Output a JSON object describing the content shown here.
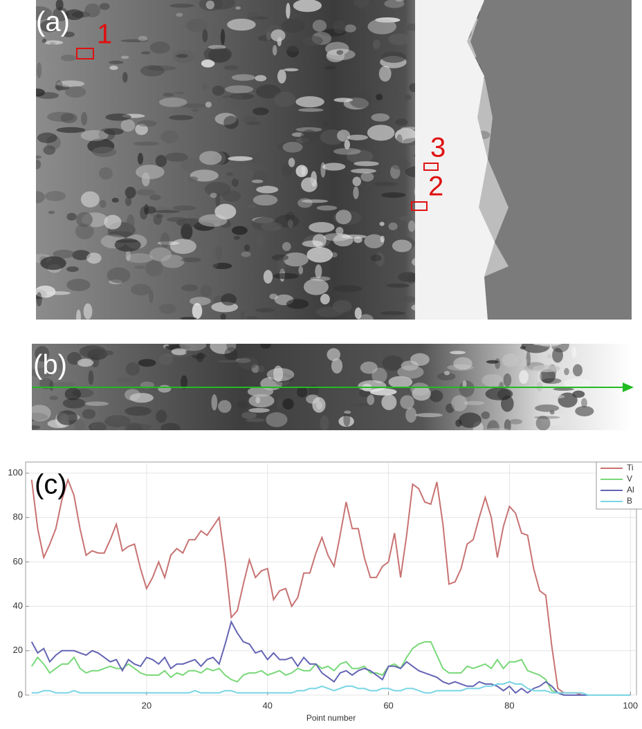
{
  "panels": {
    "a": {
      "label": "(a)",
      "markers": [
        "1",
        "2",
        "3"
      ]
    },
    "b": {
      "label": "(b)"
    }
  },
  "chart_data": {
    "type": "line",
    "panel_label": "(c)",
    "x_label": "Point number",
    "x": [
      1,
      2,
      3,
      4,
      5,
      6,
      7,
      8,
      9,
      10,
      11,
      12,
      13,
      14,
      15,
      16,
      17,
      18,
      19,
      20,
      21,
      22,
      23,
      24,
      25,
      26,
      27,
      28,
      29,
      30,
      31,
      32,
      33,
      34,
      35,
      36,
      37,
      38,
      39,
      40,
      41,
      42,
      43,
      44,
      45,
      46,
      47,
      48,
      49,
      50,
      51,
      52,
      53,
      54,
      55,
      56,
      57,
      58,
      59,
      60,
      61,
      62,
      63,
      64,
      65,
      66,
      67,
      68,
      69,
      70,
      71,
      72,
      73,
      74,
      75,
      76,
      77,
      78,
      79,
      80,
      81,
      82,
      83,
      84,
      85,
      86,
      87,
      88,
      89,
      90,
      91,
      92,
      93,
      94,
      95,
      96,
      97,
      98,
      99,
      100
    ],
    "series": [
      {
        "name": "Ti",
        "color": "#c87272",
        "values": [
          97,
          75,
          62,
          68,
          75,
          88,
          97,
          90,
          75,
          63,
          65,
          64,
          64,
          70,
          77,
          65,
          67,
          68,
          57,
          48,
          53,
          60,
          53,
          63,
          66,
          64,
          70,
          70,
          74,
          72,
          76,
          80,
          60,
          35,
          38,
          50,
          61,
          53,
          56,
          57,
          43,
          47,
          48,
          40,
          44,
          55,
          55,
          64,
          71,
          63,
          58,
          72,
          87,
          75,
          75,
          62,
          53,
          53,
          58,
          60,
          73,
          53,
          72,
          95,
          93,
          87,
          86,
          96,
          77,
          50,
          51,
          57,
          68,
          70,
          80,
          89,
          80,
          62,
          76,
          85,
          82,
          73,
          72,
          57,
          47,
          45,
          22,
          3,
          1,
          1,
          1,
          0,
          0,
          0,
          0,
          0,
          0,
          0,
          0,
          0
        ]
      },
      {
        "name": "V",
        "color": "#78d878",
        "values": [
          13,
          17,
          14,
          10,
          12,
          14,
          14,
          17,
          12,
          10,
          11,
          11,
          12,
          13,
          12,
          12,
          14,
          12,
          10,
          9,
          9,
          9,
          11,
          8,
          10,
          9,
          11,
          11,
          10,
          12,
          11,
          12,
          9,
          7,
          6,
          9,
          10,
          10,
          11,
          9,
          10,
          11,
          9,
          10,
          12,
          11,
          11,
          14,
          12,
          13,
          11,
          14,
          15,
          12,
          12,
          13,
          10,
          10,
          9,
          13,
          14,
          12,
          17,
          21,
          23,
          24,
          24,
          18,
          12,
          10,
          10,
          10,
          13,
          12,
          13,
          14,
          12,
          16,
          12,
          15,
          15,
          16,
          11,
          10,
          9,
          7,
          2,
          1,
          0,
          0,
          0,
          0,
          0,
          0,
          0,
          0,
          0,
          0,
          0,
          0
        ]
      },
      {
        "name": "Al",
        "color": "#6464b4",
        "values": [
          24,
          19,
          21,
          15,
          18,
          20,
          20,
          20,
          19,
          18,
          20,
          19,
          17,
          15,
          16,
          11,
          16,
          14,
          13,
          17,
          16,
          14,
          17,
          12,
          14,
          14,
          15,
          16,
          13,
          16,
          17,
          14,
          23,
          33,
          28,
          24,
          23,
          19,
          20,
          16,
          19,
          16,
          16,
          17,
          13,
          17,
          14,
          14,
          10,
          8,
          6,
          10,
          11,
          9,
          11,
          12,
          11,
          9,
          7,
          13,
          13,
          12,
          15,
          13,
          11,
          10,
          9,
          8,
          6,
          5,
          6,
          5,
          4,
          4,
          6,
          5,
          5,
          4,
          2,
          4,
          1,
          3,
          1,
          3,
          4,
          6,
          4,
          1,
          0,
          0,
          0,
          0,
          0,
          0,
          0,
          0,
          0,
          0,
          0,
          0
        ]
      },
      {
        "name": "B",
        "color": "#78d4e4",
        "values": [
          1,
          1,
          2,
          2,
          1,
          1,
          1,
          2,
          1,
          1,
          1,
          1,
          1,
          1,
          1,
          1,
          1,
          1,
          1,
          1,
          1,
          1,
          1,
          1,
          1,
          1,
          1,
          2,
          1,
          1,
          1,
          1,
          2,
          2,
          1,
          1,
          1,
          1,
          1,
          1,
          1,
          1,
          1,
          1,
          2,
          2,
          3,
          3,
          4,
          3,
          2,
          3,
          4,
          4,
          3,
          3,
          2,
          2,
          3,
          3,
          2,
          2,
          3,
          3,
          2,
          1,
          1,
          2,
          2,
          2,
          2,
          2,
          3,
          3,
          3,
          4,
          4,
          5,
          5,
          6,
          5,
          5,
          3,
          2,
          2,
          2,
          1,
          1,
          1,
          1,
          1,
          1,
          0,
          0,
          0,
          0,
          0,
          0,
          0,
          0
        ]
      }
    ],
    "xlim": [
      0,
      101
    ],
    "xticks": [
      20,
      40,
      60,
      80,
      100
    ],
    "ylim": [
      0,
      105
    ],
    "yticks": [
      0,
      20,
      40,
      60,
      80,
      100
    ],
    "grid": true
  }
}
